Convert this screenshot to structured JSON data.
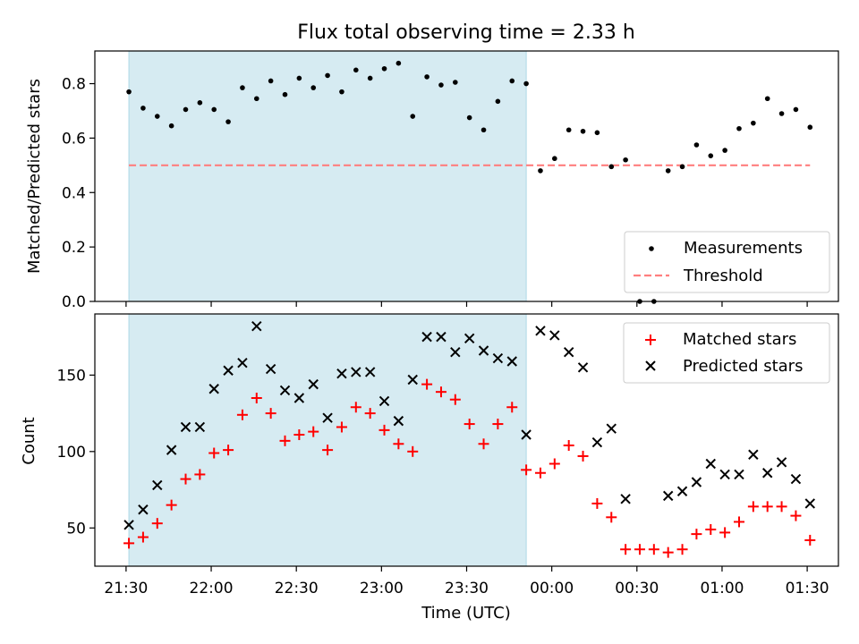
{
  "figure": {
    "title": "Flux total observing time = 2.33 h",
    "xlabel": "Time (UTC)",
    "x_tick_labels": [
      "21:30",
      "22:00",
      "22:30",
      "23:00",
      "23:30",
      "00:00",
      "00:30",
      "01:00",
      "01:30"
    ],
    "colors": {
      "shade": "#add8e6",
      "threshold": "#ff7f7f",
      "measure": "#000000",
      "matched": "#ff0000",
      "predicted": "#000000"
    }
  },
  "chart_data": [
    {
      "type": "scatter",
      "title": "Flux total observing time = 2.33 h",
      "ylabel": "Matched/Predicted stars",
      "ylim": [
        0,
        0.92
      ],
      "y_ticks": [
        0.0,
        0.2,
        0.4,
        0.6,
        0.8
      ],
      "y_tick_labels": [
        "0.0",
        "0.2",
        "0.4",
        "0.6",
        "0.8"
      ],
      "x_axis": "time in minutes after 21:30 UTC",
      "xlim": [
        -11,
        251
      ],
      "shaded_interval": [
        "21:31",
        "23:51"
      ],
      "threshold": {
        "name": "Threshold",
        "value": 0.5,
        "x_range": [
          "21:31",
          "01:31"
        ]
      },
      "legend": {
        "location": "lower right",
        "entries": [
          "Measurements",
          "Threshold"
        ]
      },
      "series": [
        {
          "name": "Measurements",
          "marker": "dot",
          "x": [
            1,
            6,
            11,
            16,
            21,
            26,
            31,
            36,
            41,
            46,
            51,
            56,
            61,
            66,
            71,
            76,
            81,
            86,
            91,
            96,
            101,
            106,
            111,
            116,
            121,
            126,
            131,
            136,
            141,
            146,
            151,
            156,
            161,
            166,
            171,
            176,
            181,
            186,
            191,
            196,
            201,
            206,
            211,
            216,
            221,
            226,
            231,
            236,
            241
          ],
          "y": [
            0.77,
            0.71,
            0.68,
            0.645,
            0.705,
            0.73,
            0.705,
            0.66,
            0.785,
            0.745,
            0.81,
            0.76,
            0.82,
            0.785,
            0.83,
            0.77,
            0.85,
            0.82,
            0.855,
            0.875,
            0.68,
            0.825,
            0.795,
            0.805,
            0.675,
            0.63,
            0.735,
            0.81,
            0.8,
            0.48,
            0.525,
            0.63,
            0.625,
            0.62,
            0.495,
            0.52,
            0.0,
            0.0,
            0.48,
            0.495,
            0.575,
            0.535,
            0.555,
            0.635,
            0.655,
            0.745,
            0.69,
            0.705,
            0.64
          ]
        }
      ]
    },
    {
      "type": "scatter",
      "ylabel": "Count",
      "xlabel": "Time (UTC)",
      "ylim": [
        25,
        190
      ],
      "y_ticks": [
        50,
        100,
        150
      ],
      "y_tick_labels": [
        "50",
        "100",
        "150"
      ],
      "x_axis": "time in minutes after 21:30 UTC",
      "xlim": [
        -11,
        251
      ],
      "shaded_interval": [
        "21:31",
        "23:51"
      ],
      "legend": {
        "location": "upper right",
        "entries": [
          "Matched stars",
          "Predicted stars"
        ]
      },
      "series": [
        {
          "name": "Matched stars",
          "marker": "plus",
          "x": [
            1,
            6,
            11,
            16,
            21,
            26,
            31,
            36,
            41,
            46,
            51,
            56,
            61,
            66,
            71,
            76,
            81,
            86,
            91,
            96,
            101,
            106,
            111,
            116,
            121,
            126,
            131,
            136,
            141,
            146,
            151,
            156,
            161,
            166,
            171,
            176,
            181,
            186,
            191,
            196,
            201,
            206,
            211,
            216,
            221,
            226,
            231,
            236,
            241
          ],
          "y": [
            40,
            44,
            53,
            65,
            82,
            85,
            99,
            101,
            124,
            135,
            125,
            107,
            111,
            113,
            101,
            116,
            129,
            125,
            114,
            105,
            100,
            144,
            139,
            134,
            118,
            105,
            118,
            129,
            88,
            86,
            92,
            104,
            97,
            66,
            57,
            36,
            36,
            36,
            34,
            36,
            46,
            49,
            47,
            54,
            64,
            64,
            64,
            58,
            42
          ]
        },
        {
          "name": "Predicted stars",
          "marker": "x",
          "x": [
            1,
            6,
            11,
            16,
            21,
            26,
            31,
            36,
            41,
            46,
            51,
            56,
            61,
            66,
            71,
            76,
            81,
            86,
            91,
            96,
            101,
            106,
            111,
            116,
            121,
            126,
            131,
            136,
            141,
            146,
            151,
            156,
            161,
            166,
            171,
            176,
            191,
            196,
            201,
            206,
            211,
            216,
            221,
            226,
            231,
            236,
            241
          ],
          "y": [
            52,
            62,
            78,
            101,
            116,
            116,
            141,
            153,
            158,
            182,
            154,
            140,
            135,
            144,
            122,
            151,
            152,
            152,
            133,
            120,
            147,
            175,
            175,
            165,
            174,
            166,
            161,
            159,
            111,
            179,
            176,
            165,
            155,
            106,
            115,
            69,
            71,
            74,
            80,
            92,
            85,
            85,
            98,
            86,
            93,
            82,
            66
          ]
        }
      ]
    }
  ]
}
